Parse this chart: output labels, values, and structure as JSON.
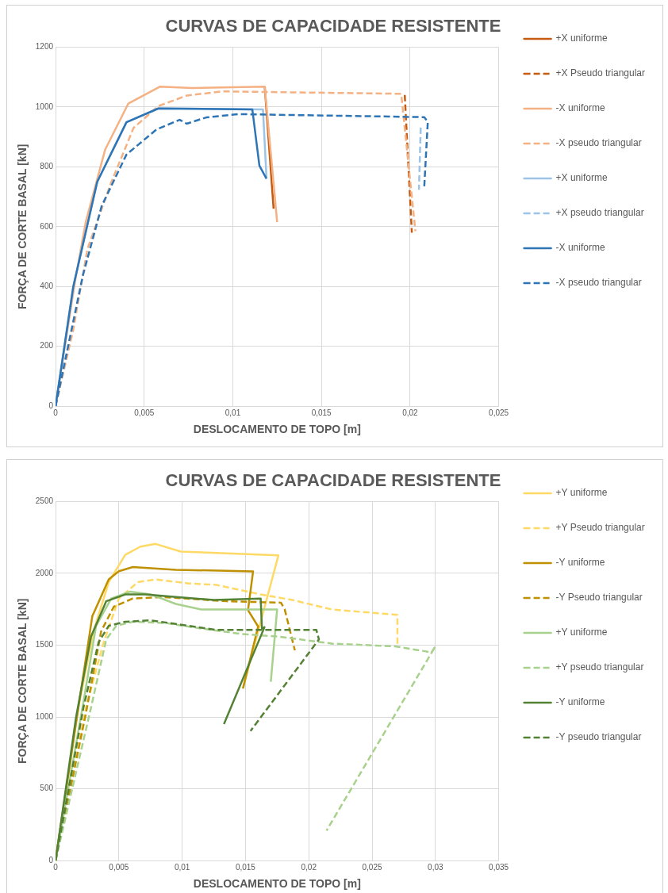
{
  "chart_data": [
    {
      "type": "line",
      "title": "CURVAS DE CAPACIDADE RESISTENTE",
      "xlabel": "DESLOCAMENTO DE TOPO [m]",
      "ylabel": "FORÇA DE CORTE BASAL [kN]",
      "xlim": [
        0,
        0.025
      ],
      "xticks": [
        0,
        {
          "value": 0.005,
          "label": "0,005"
        },
        {
          "value": 0.01,
          "label": "0,01"
        },
        {
          "value": 0.015,
          "label": "0,015"
        },
        {
          "value": 0.02,
          "label": "0,02"
        },
        {
          "value": 0.025,
          "label": "0,025"
        }
      ],
      "ylim": [
        0,
        1200
      ],
      "yticks": [
        0,
        200,
        400,
        600,
        800,
        1000,
        1200
      ],
      "grid": true,
      "legend": "right",
      "marker": "none",
      "series": [
        {
          "name": "+X uniforme",
          "color": "#c55a11",
          "line_style": "solid",
          "x": [
            0.0118,
            0.0123
          ],
          "values": [
            1068,
            660
          ]
        },
        {
          "name": "+X Pseudo triangular",
          "color": "#c55a11",
          "line_style": "dashed",
          "x": [
            0.0197,
            0.0201
          ],
          "values": [
            1040,
            580
          ]
        },
        {
          "name": "-X uniforme",
          "color": "#f4b183",
          "line_style": "solid",
          "x": [
            0,
            0.0011,
            0.0017,
            0.0028,
            0.0041,
            0.0059,
            0.0077,
            0.0118,
            0.0125
          ],
          "values": [
            0,
            418,
            615,
            858,
            1011,
            1068,
            1063,
            1068,
            615
          ]
        },
        {
          "name": "-X pseudo triangular",
          "color": "#f4b183",
          "line_style": "dashed",
          "x": [
            0,
            0.001,
            0.0018,
            0.0031,
            0.0044,
            0.0058,
            0.0074,
            0.0094,
            0.0195,
            0.0203
          ],
          "values": [
            0,
            256,
            526,
            742,
            930,
            1003,
            1038,
            1052,
            1044,
            585
          ]
        },
        {
          "name": "+X uniforme",
          "color": "#9dc3e6",
          "line_style": "solid",
          "x": [
            0,
            0.001,
            0.00235,
            0.004,
            0.0058,
            0.0117,
            0.0119
          ],
          "values": [
            0,
            400,
            750,
            949,
            995,
            992,
            763
          ]
        },
        {
          "name": "+X pseudo triangular",
          "color": "#9dc3e6",
          "line_style": "dashed",
          "x": [
            0.0206,
            0.0205
          ],
          "values": [
            931,
            723
          ]
        },
        {
          "name": "-X uniforme",
          "color": "#2e75b6",
          "line_style": "solid",
          "x": [
            0,
            0.001,
            0.00235,
            0.004,
            0.0058,
            0.0111,
            0.0115,
            0.0119
          ],
          "values": [
            0,
            400,
            750,
            949,
            995,
            992,
            804,
            760
          ]
        },
        {
          "name": "-X pseudo triangular",
          "color": "#2e75b6",
          "line_style": "dashed",
          "x": [
            0,
            0.00154,
            0.0026,
            0.004,
            0.0057,
            0.007,
            0.0074,
            0.0085,
            0.0103,
            0.0208,
            0.021,
            0.0208
          ],
          "values": [
            0,
            437,
            669,
            841,
            925,
            957,
            944,
            965,
            976,
            966,
            950,
            733
          ]
        }
      ]
    },
    {
      "type": "line",
      "title": "CURVAS DE CAPACIDADE RESISTENTE",
      "xlabel": "DESLOCAMENTO DE TOPO [m]",
      "ylabel": "FORÇA DE CORTE BASAL [kN]",
      "xlim": [
        0,
        0.035
      ],
      "xticks": [
        0,
        {
          "value": 0.005,
          "label": "0,005"
        },
        {
          "value": 0.01,
          "label": "0,01"
        },
        {
          "value": 0.015,
          "label": "0,015"
        },
        {
          "value": 0.02,
          "label": "0,02"
        },
        {
          "value": 0.025,
          "label": "0,025"
        },
        {
          "value": 0.03,
          "label": "0,03"
        },
        {
          "value": 0.035,
          "label": "0,035"
        }
      ],
      "ylim": [
        0,
        2500
      ],
      "yticks": [
        0,
        500,
        1000,
        1500,
        2000,
        2500
      ],
      "grid": true,
      "legend": "right",
      "marker": "none",
      "series": [
        {
          "name": "+Y uniforme",
          "color": "#ffd966",
          "line_style": "solid",
          "x": [
            0,
            0.0018,
            0.003,
            0.0042,
            0.0055,
            0.0067,
            0.0079,
            0.0099,
            0.0176,
            0.0148
          ],
          "values": [
            0,
            1065,
            1597,
            1939,
            2129,
            2186,
            2205,
            2152,
            2125,
            1200
          ]
        },
        {
          "name": "+Y Pseudo triangular",
          "color": "#ffd966",
          "line_style": "dashed",
          "x": [
            0,
            0.0024,
            0.0038,
            0.005,
            0.0065,
            0.0079,
            0.0105,
            0.0127,
            0.0162,
            0.0187,
            0.0218,
            0.027,
            0.027
          ],
          "values": [
            0,
            1065,
            1521,
            1825,
            1939,
            1958,
            1930,
            1920,
            1853,
            1815,
            1749,
            1711,
            1502
          ]
        },
        {
          "name": "-Y uniforme",
          "color": "#bf9000",
          "line_style": "solid",
          "x": [
            0,
            0.0016,
            0.0029,
            0.0042,
            0.005,
            0.0061,
            0.0095,
            0.0156,
            0.0152,
            0.016,
            0.0148
          ],
          "values": [
            0,
            950,
            1701,
            1958,
            2015,
            2044,
            2025,
            2014,
            1744,
            1630,
            1198
          ]
        },
        {
          "name": "-Y Pseudo triangular",
          "color": "#bf9000",
          "line_style": "dashed",
          "x": [
            0,
            0.0024,
            0.0036,
            0.0046,
            0.0061,
            0.0085,
            0.0135,
            0.0178,
            0.0181,
            0.0189
          ],
          "values": [
            0,
            1027,
            1597,
            1768,
            1825,
            1835,
            1806,
            1796,
            1749,
            1464
          ]
        },
        {
          "name": "+Y uniforme",
          "color": "#a9d18e",
          "line_style": "solid",
          "x": [
            0,
            0.0022,
            0.0032,
            0.0044,
            0.0059,
            0.0075,
            0.0095,
            0.0115,
            0.0175,
            0.017
          ],
          "values": [
            0,
            1103,
            1635,
            1825,
            1873,
            1854,
            1787,
            1749,
            1749,
            1245
          ]
        },
        {
          "name": "+Y pseudo triangular",
          "color": "#a9d18e",
          "line_style": "dashed",
          "x": [
            0,
            0.0028,
            0.004,
            0.0048,
            0.0061,
            0.0087,
            0.0115,
            0.0147,
            0.0177,
            0.0218,
            0.0268,
            0.0297,
            0.03,
            0.0214
          ],
          "values": [
            0,
            1065,
            1540,
            1635,
            1663,
            1654,
            1616,
            1578,
            1559,
            1511,
            1492,
            1450,
            1492,
            209
          ]
        },
        {
          "name": "-Y uniforme",
          "color": "#548235",
          "line_style": "solid",
          "x": [
            0,
            0.0016,
            0.0028,
            0.004,
            0.0055,
            0.0071,
            0.0095,
            0.0125,
            0.0162,
            0.0163,
            0.0165,
            0.0133
          ],
          "values": [
            0,
            989,
            1559,
            1806,
            1853,
            1853,
            1835,
            1815,
            1825,
            1616,
            1625,
            951
          ]
        },
        {
          "name": "-Y pseudo triangular",
          "color": "#548235",
          "line_style": "dashed",
          "x": [
            0,
            0.0022,
            0.0034,
            0.0042,
            0.0055,
            0.0075,
            0.0105,
            0.0127,
            0.0206,
            0.0208,
            0.0154
          ],
          "values": [
            0,
            1065,
            1521,
            1635,
            1663,
            1673,
            1635,
            1606,
            1606,
            1540,
            903
          ]
        }
      ]
    }
  ]
}
